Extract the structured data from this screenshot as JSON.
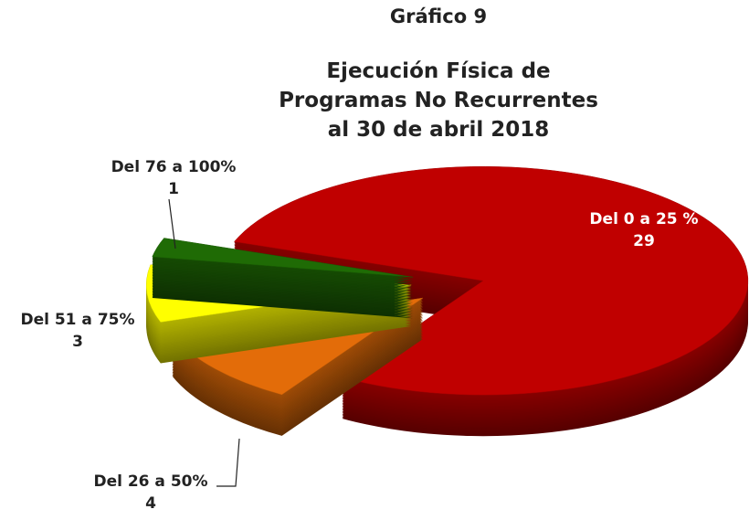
{
  "chart_data": {
    "type": "pie3d",
    "title": "Gráfico 9",
    "subtitle": [
      "Ejecución Física de",
      "Programas No Recurrentes",
      "al 30 de abril 2018"
    ],
    "categories": [
      "Del 0 a 25 %",
      "Del 26 a 50%",
      "Del 51 a 75%",
      "Del 76 a 100%"
    ],
    "values": [
      29,
      4,
      3,
      1
    ],
    "colors": [
      "#c00000",
      "#e36c09",
      "#ffff00",
      "#1f6b05"
    ]
  }
}
